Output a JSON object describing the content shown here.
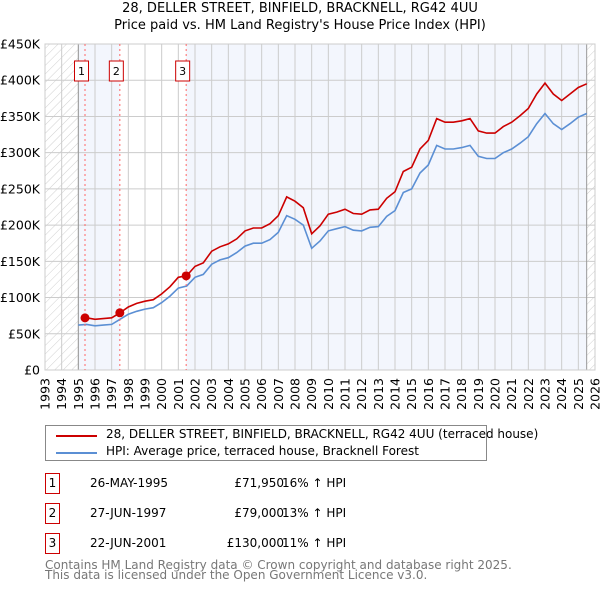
{
  "chart_data": {
    "type": "line",
    "title": "28, DELLER STREET, BINFIELD, BRACKNELL, RG42 4UU",
    "subtitle": "Price paid vs. HM Land Registry's House Price Index (HPI)",
    "xlim": [
      1993,
      2026
    ],
    "ylim": [
      0,
      450000
    ],
    "x_ticks": [
      "1993",
      "1994",
      "1995",
      "1996",
      "1997",
      "1998",
      "1999",
      "2000",
      "2001",
      "2002",
      "2003",
      "2004",
      "2005",
      "2006",
      "2007",
      "2008",
      "2009",
      "2010",
      "2011",
      "2012",
      "2013",
      "2014",
      "2015",
      "2016",
      "2017",
      "2018",
      "2019",
      "2020",
      "2021",
      "2022",
      "2023",
      "2024",
      "2025",
      "2026"
    ],
    "y_ticks": [
      {
        "v": 0,
        "label": "£0"
      },
      {
        "v": 50000,
        "label": "£50K"
      },
      {
        "v": 100000,
        "label": "£100K"
      },
      {
        "v": 150000,
        "label": "£150K"
      },
      {
        "v": 200000,
        "label": "£200K"
      },
      {
        "v": 250000,
        "label": "£250K"
      },
      {
        "v": 300000,
        "label": "£300K"
      },
      {
        "v": 350000,
        "label": "£350K"
      },
      {
        "v": 400000,
        "label": "£400K"
      },
      {
        "v": 450000,
        "label": "£450K"
      }
    ],
    "grid": true,
    "data_range": [
      1995.0,
      2025.5
    ],
    "series": [
      {
        "name": "28, DELLER STREET, BINFIELD, BRACKNELL, RG42 4UU (terraced house)",
        "color": "#cc0000",
        "x": [
          1995.4,
          1995.5,
          1996,
          1996.5,
          1997,
          1997.5,
          1998,
          1998.5,
          1999,
          1999.5,
          2000,
          2000.5,
          2001,
          2001.5,
          2002,
          2002.5,
          2003,
          2003.5,
          2004,
          2004.5,
          2005,
          2005.5,
          2006,
          2006.5,
          2007,
          2007.5,
          2008,
          2008.5,
          2009,
          2009.5,
          2010,
          2010.5,
          2011,
          2011.5,
          2012,
          2012.5,
          2013,
          2013.5,
          2014,
          2014.5,
          2015,
          2015.5,
          2016,
          2016.5,
          2017,
          2017.5,
          2018,
          2018.5,
          2019,
          2019.5,
          2020,
          2020.5,
          2021,
          2021.5,
          2022,
          2022.5,
          2023,
          2023.5,
          2024,
          2024.5,
          2025,
          2025.5
        ],
        "y": [
          71950,
          72000,
          70000,
          71000,
          72000,
          79000,
          87000,
          92000,
          95000,
          97000,
          105000,
          115000,
          128000,
          130000,
          143000,
          148000,
          164000,
          170000,
          174000,
          181000,
          192000,
          196000,
          196000,
          202000,
          213000,
          239000,
          233000,
          224000,
          188000,
          199000,
          215000,
          218000,
          222000,
          216000,
          215000,
          221000,
          222000,
          237000,
          246000,
          274000,
          280000,
          305000,
          317000,
          347000,
          342000,
          342000,
          344000,
          347000,
          330000,
          327000,
          327000,
          336000,
          342000,
          351000,
          361000,
          381000,
          396000,
          381000,
          372000,
          381000,
          390000,
          395000
        ]
      },
      {
        "name": "HPI: Average price, terraced house, Bracknell Forest",
        "color": "#5b8fd4",
        "x": [
          1995,
          1995.5,
          1996,
          1996.5,
          1997,
          1997.5,
          1998,
          1998.5,
          1999,
          1999.5,
          2000,
          2000.5,
          2001,
          2001.5,
          2002,
          2002.5,
          2003,
          2003.5,
          2004,
          2004.5,
          2005,
          2005.5,
          2006,
          2006.5,
          2007,
          2007.5,
          2008,
          2008.5,
          2009,
          2009.5,
          2010,
          2010.5,
          2011,
          2011.5,
          2012,
          2012.5,
          2013,
          2013.5,
          2014,
          2014.5,
          2015,
          2015.5,
          2016,
          2016.5,
          2017,
          2017.5,
          2018,
          2018.5,
          2019,
          2019.5,
          2020,
          2020.5,
          2021,
          2021.5,
          2022,
          2022.5,
          2023,
          2023.5,
          2024,
          2024.5,
          2025,
          2025.5
        ],
        "y": [
          62000,
          63000,
          61000,
          62000,
          63000,
          70000,
          77000,
          81000,
          84000,
          86000,
          93000,
          102000,
          113000,
          116000,
          128000,
          132000,
          146000,
          152000,
          155000,
          162000,
          171000,
          175000,
          175000,
          180000,
          190000,
          213000,
          208000,
          200000,
          168000,
          178000,
          192000,
          195000,
          198000,
          193000,
          192000,
          197000,
          198000,
          212000,
          220000,
          245000,
          250000,
          272000,
          283000,
          310000,
          305000,
          305000,
          307000,
          310000,
          295000,
          292000,
          292000,
          300000,
          305000,
          313000,
          322000,
          340000,
          354000,
          340000,
          332000,
          340000,
          349000,
          354000
        ]
      }
    ],
    "sales": [
      {
        "label": "1",
        "x": 1995.4,
        "price": 71950
      },
      {
        "label": "2",
        "x": 1997.49,
        "price": 79000
      },
      {
        "label": "3",
        "x": 2001.47,
        "price": 130000
      }
    ]
  },
  "legend": {
    "property": "28, DELLER STREET, BINFIELD, BRACKNELL, RG42 4UU (terraced house)",
    "hpi": "HPI: Average price, terraced house, Bracknell Forest"
  },
  "transactions": [
    {
      "num": "1",
      "date": "26-MAY-1995",
      "price": "£71,950",
      "hpi": "16% ↑ HPI"
    },
    {
      "num": "2",
      "date": "27-JUN-1997",
      "price": "£79,000",
      "hpi": "13% ↑ HPI"
    },
    {
      "num": "3",
      "date": "22-JUN-2001",
      "price": "£130,000",
      "hpi": "11% ↑ HPI"
    }
  ],
  "footer": {
    "line1": "Contains HM Land Registry data © Crown copyright and database right 2025.",
    "line2": "This data is licensed under the Open Government Licence v3.0."
  }
}
